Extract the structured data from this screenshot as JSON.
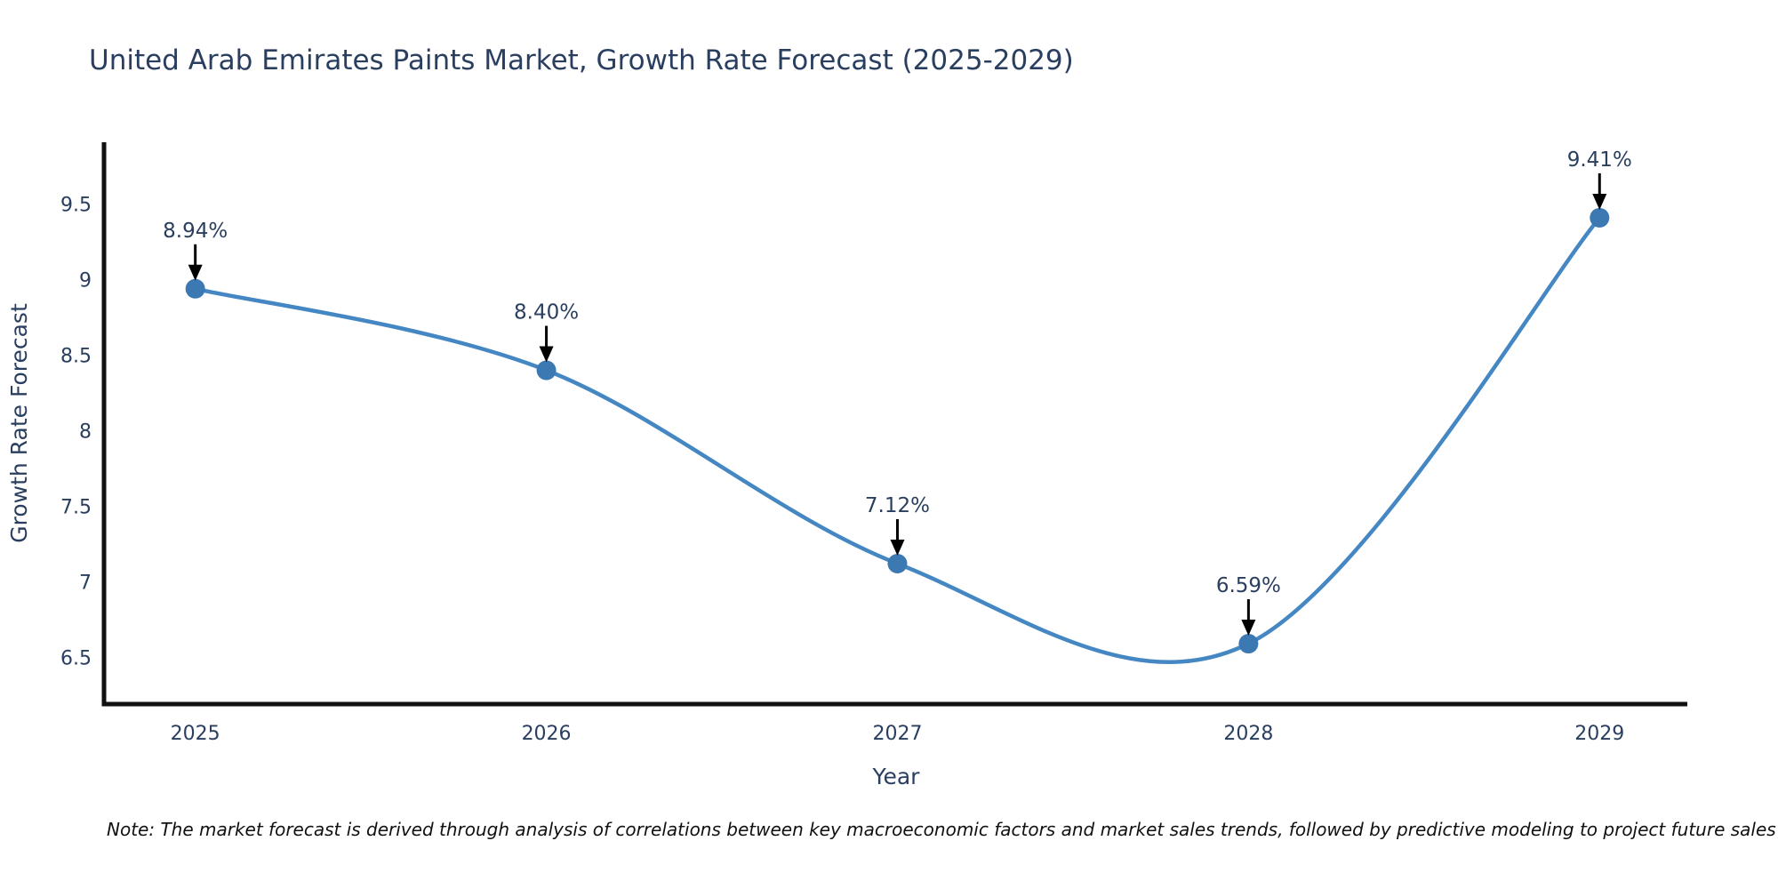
{
  "title": "United Arab Emirates Paints Market, Growth Rate Forecast (2025-2029)",
  "note": "Note: The market forecast is derived through analysis of correlations between key macroeconomic factors and market sales trends, followed by predictive modeling to project future sales",
  "chart_data": {
    "type": "line",
    "title": "United Arab Emirates Paints Market, Growth Rate Forecast (2025-2029)",
    "xlabel": "Year",
    "ylabel": "Growth Rate Forecast",
    "categories": [
      "2025",
      "2026",
      "2027",
      "2028",
      "2029"
    ],
    "values": [
      8.94,
      8.4,
      7.12,
      6.59,
      9.41
    ],
    "point_labels": [
      "8.94%",
      "8.40%",
      "7.12%",
      "6.59%",
      "9.41%"
    ],
    "yticks": [
      9.5,
      9,
      8.5,
      8,
      7.5,
      7,
      6.5
    ],
    "ylim": [
      6.19,
      9.91
    ],
    "xlim": [
      -0.26,
      4.25
    ],
    "line_shape": "spline",
    "grid": false,
    "legend": "none",
    "colors": {
      "line": "#4487c3",
      "marker": "#3c79b2",
      "axis": "#111111",
      "text": "#2a3f5f",
      "arrow": "#000000",
      "background": "#ffffff"
    }
  }
}
